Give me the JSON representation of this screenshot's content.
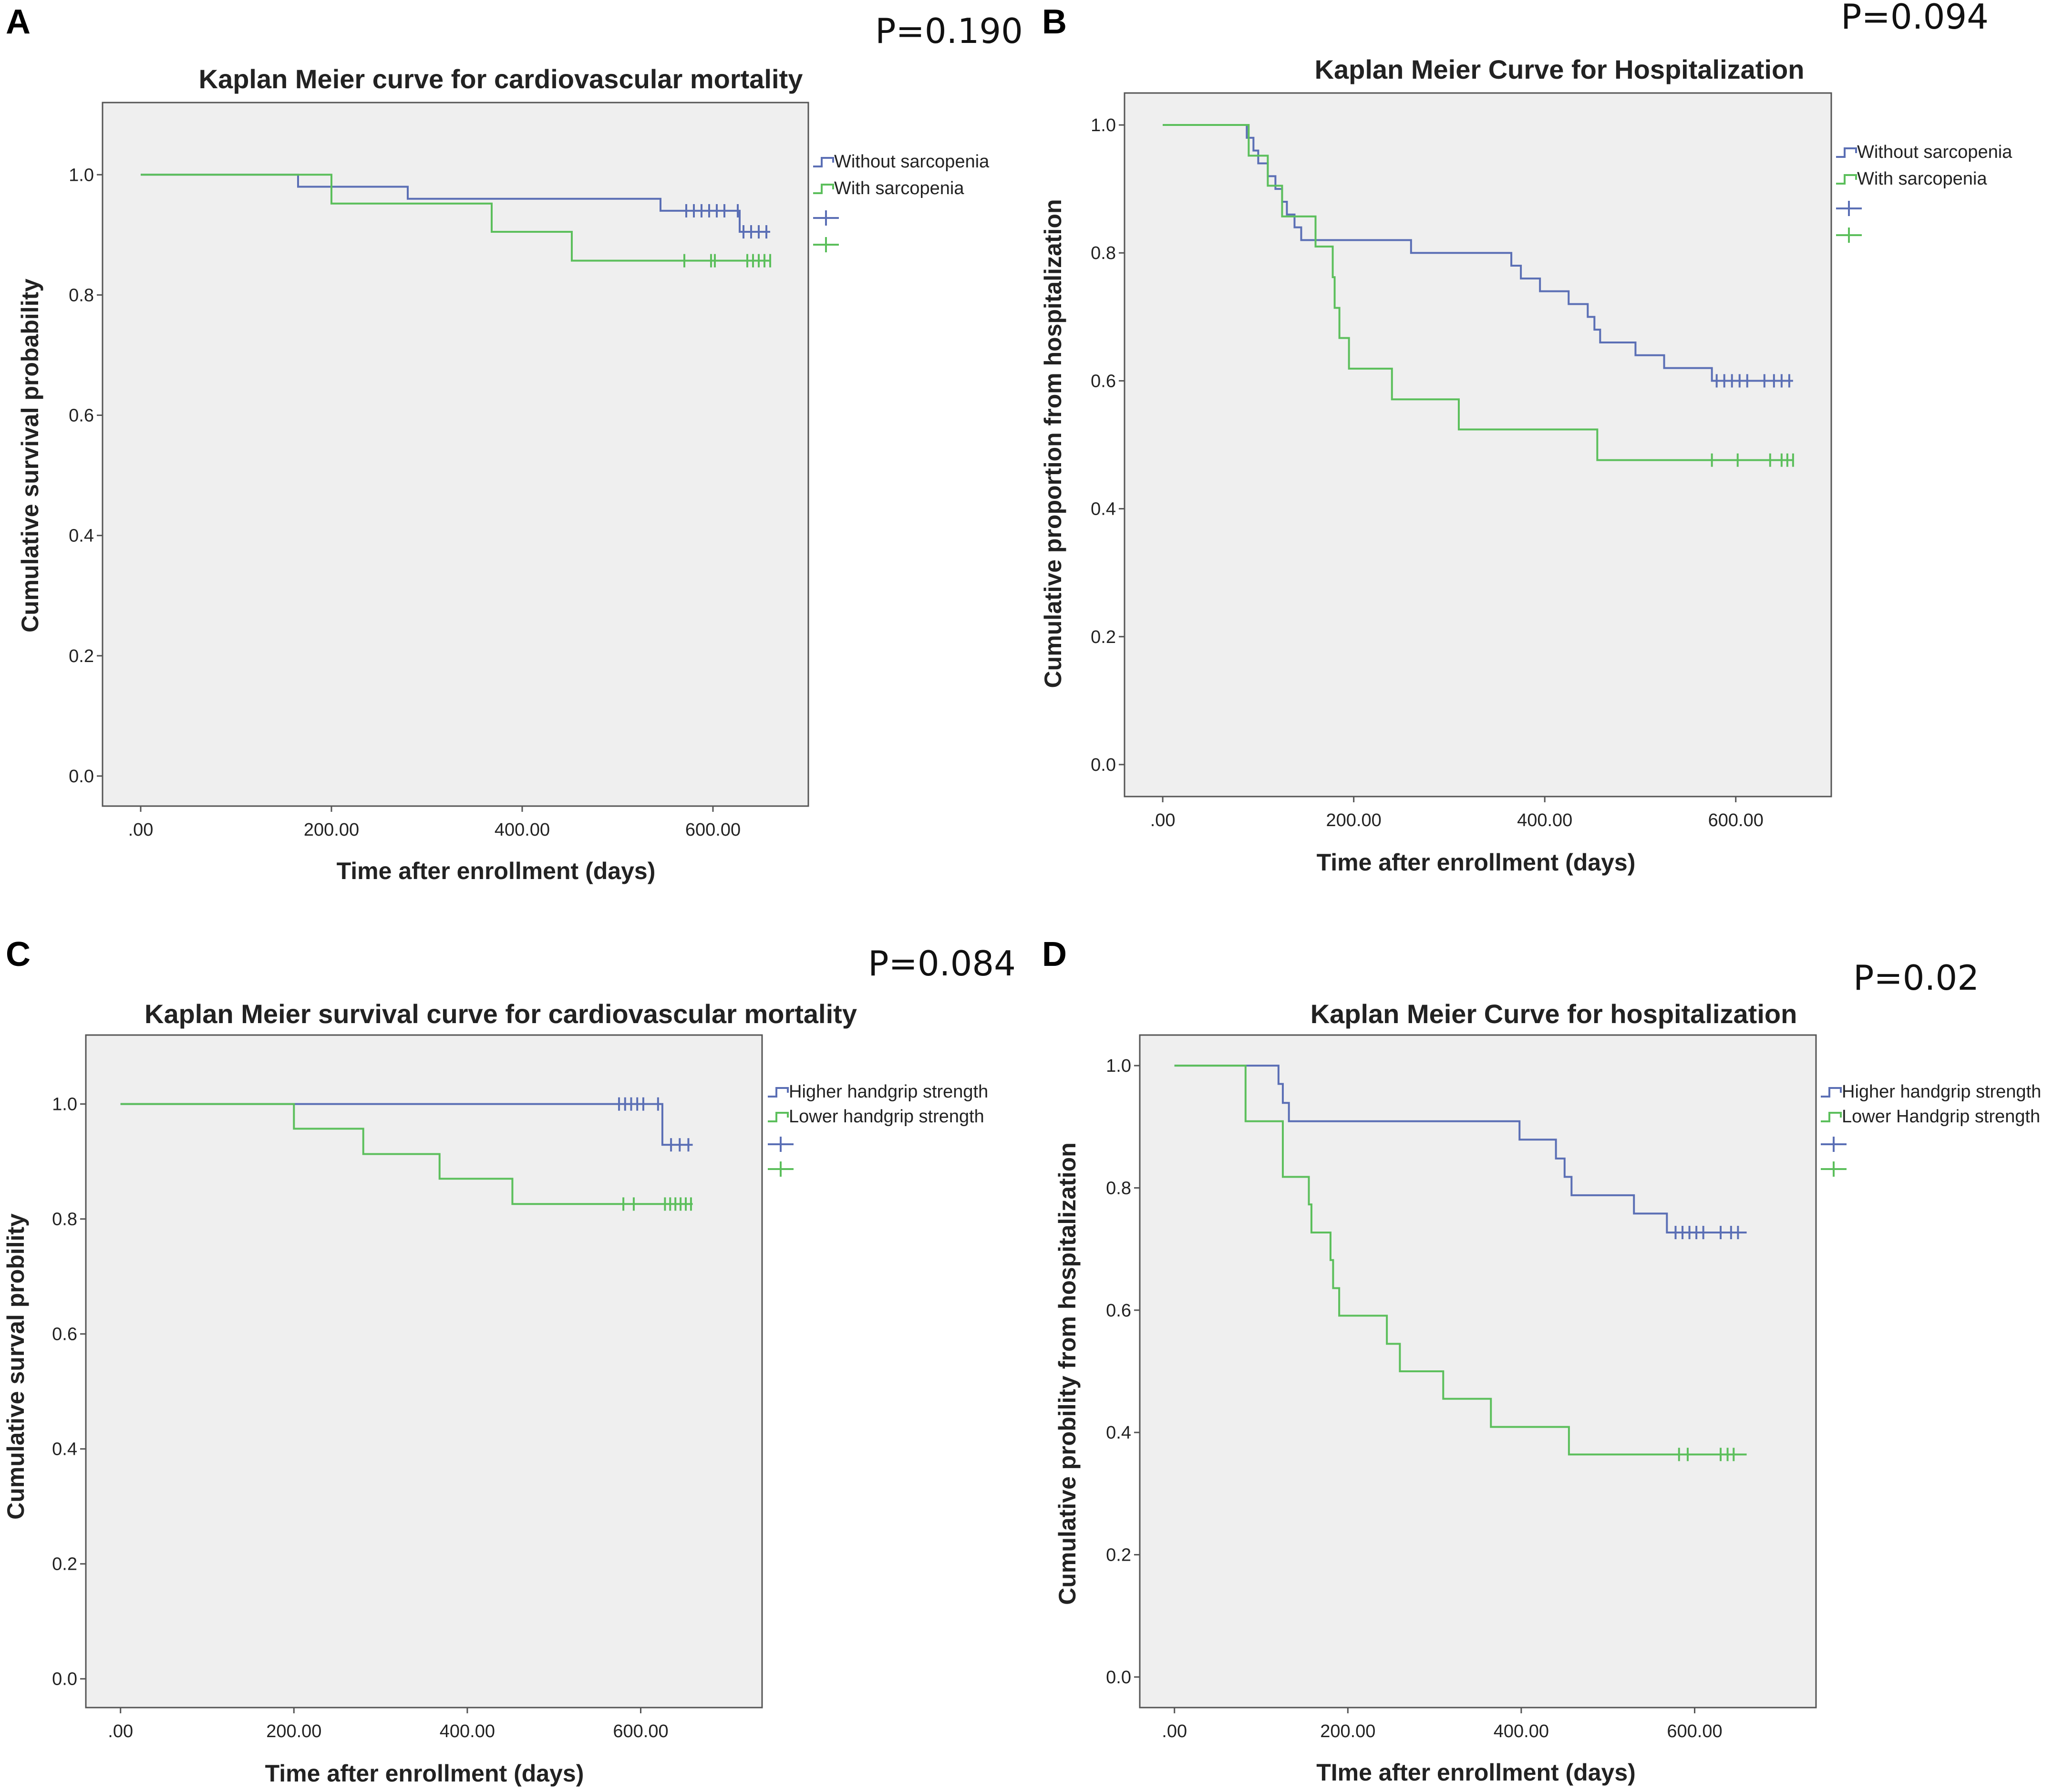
{
  "chart_data": [
    {
      "type": "line",
      "panel": "A",
      "p_value": "P=0.190",
      "title": "Kaplan Meier curve for cardiovascular mortality",
      "xlabel": "Time after enrollment (days)",
      "ylabel": "Cumulative survival probability",
      "xlim": [
        -40,
        700
      ],
      "ylim": [
        -0.05,
        1.12
      ],
      "xticks": [
        0,
        200,
        400,
        600
      ],
      "xtick_labels": [
        ".00",
        "200.00",
        "400.00",
        "600.00"
      ],
      "yticks": [
        0,
        0.2,
        0.4,
        0.6,
        0.8,
        1.0
      ],
      "ytick_labels": [
        "0.0",
        "0.2",
        "0.4",
        "0.6",
        "0.8",
        "1.0"
      ],
      "legend": [
        "Without sarcopenia",
        "With sarcopenia",
        "",
        ""
      ],
      "series": [
        {
          "name": "Without sarcopenia",
          "color": "#5b6fb5",
          "steps": [
            [
              0,
              1.0
            ],
            [
              165,
              0.98
            ],
            [
              280,
              0.96
            ],
            [
              545,
              0.94
            ],
            [
              628,
              0.905
            ],
            [
              660,
              0.905
            ]
          ],
          "censored": [
            [
              572,
              0.94
            ],
            [
              580,
              0.94
            ],
            [
              588,
              0.94
            ],
            [
              596,
              0.94
            ],
            [
              604,
              0.94
            ],
            [
              612,
              0.94
            ],
            [
              626,
              0.94
            ],
            [
              632,
              0.905
            ],
            [
              640,
              0.905
            ],
            [
              648,
              0.905
            ],
            [
              656,
              0.905
            ]
          ]
        },
        {
          "name": "With sarcopenia",
          "color": "#5cbf5c",
          "steps": [
            [
              0,
              1.0
            ],
            [
              200,
              0.952
            ],
            [
              368,
              0.905
            ],
            [
              452,
              0.857
            ],
            [
              660,
              0.857
            ]
          ],
          "censored": [
            [
              570,
              0.857
            ],
            [
              598,
              0.857
            ],
            [
              602,
              0.857
            ],
            [
              636,
              0.857
            ],
            [
              642,
              0.857
            ],
            [
              648,
              0.857
            ],
            [
              654,
              0.857
            ],
            [
              660,
              0.857
            ]
          ]
        }
      ]
    },
    {
      "type": "line",
      "panel": "B",
      "p_value": "P=0.094",
      "title": "Kaplan Meier Curve for Hospitalization",
      "xlabel": "Time after enrollment (days)",
      "ylabel": "Cumulative proportion from hospitalization",
      "xlim": [
        -40,
        700
      ],
      "ylim": [
        -0.05,
        1.05
      ],
      "xticks": [
        0,
        200,
        400,
        600
      ],
      "xtick_labels": [
        ".00",
        "200.00",
        "400.00",
        "600.00"
      ],
      "yticks": [
        0,
        0.2,
        0.4,
        0.6,
        0.8,
        1.0
      ],
      "ytick_labels": [
        "0.0",
        "0.2",
        "0.4",
        "0.6",
        "0.8",
        "1.0"
      ],
      "legend": [
        "Without sarcopenia",
        "With sarcopenia",
        "",
        ""
      ],
      "series": [
        {
          "name": "Without sarcopenia",
          "color": "#5b6fb5",
          "steps": [
            [
              0,
              1.0
            ],
            [
              88,
              0.98
            ],
            [
              95,
              0.96
            ],
            [
              100,
              0.94
            ],
            [
              110,
              0.92
            ],
            [
              118,
              0.9
            ],
            [
              125,
              0.88
            ],
            [
              130,
              0.86
            ],
            [
              138,
              0.84
            ],
            [
              145,
              0.82
            ],
            [
              260,
              0.8
            ],
            [
              365,
              0.78
            ],
            [
              375,
              0.76
            ],
            [
              395,
              0.74
            ],
            [
              425,
              0.72
            ],
            [
              445,
              0.7
            ],
            [
              452,
              0.68
            ],
            [
              458,
              0.66
            ],
            [
              495,
              0.64
            ],
            [
              525,
              0.62
            ],
            [
              575,
              0.6
            ],
            [
              660,
              0.6
            ]
          ],
          "censored": [
            [
              580,
              0.6
            ],
            [
              588,
              0.6
            ],
            [
              596,
              0.6
            ],
            [
              604,
              0.6
            ],
            [
              612,
              0.6
            ],
            [
              630,
              0.6
            ],
            [
              640,
              0.6
            ],
            [
              648,
              0.6
            ],
            [
              656,
              0.6
            ]
          ]
        },
        {
          "name": "With sarcopenia",
          "color": "#5cbf5c",
          "steps": [
            [
              0,
              1.0
            ],
            [
              90,
              0.952
            ],
            [
              110,
              0.905
            ],
            [
              125,
              0.857
            ],
            [
              160,
              0.81
            ],
            [
              178,
              0.762
            ],
            [
              180,
              0.714
            ],
            [
              185,
              0.667
            ],
            [
              195,
              0.619
            ],
            [
              240,
              0.571
            ],
            [
              310,
              0.524
            ],
            [
              455,
              0.476
            ],
            [
              660,
              0.476
            ]
          ],
          "censored": [
            [
              575,
              0.476
            ],
            [
              602,
              0.476
            ],
            [
              636,
              0.476
            ],
            [
              648,
              0.476
            ],
            [
              654,
              0.476
            ],
            [
              660,
              0.476
            ]
          ]
        }
      ]
    },
    {
      "type": "line",
      "panel": "C",
      "p_value": "P=0.084",
      "title": "Kaplan Meier survival curve for cardiovascular mortality",
      "xlabel": "Time after enrollment (days)",
      "ylabel": "Cumulative surval probility",
      "xlim": [
        -40,
        740
      ],
      "ylim": [
        -0.05,
        1.12
      ],
      "xticks": [
        0,
        200,
        400,
        600
      ],
      "xtick_labels": [
        ".00",
        "200.00",
        "400.00",
        "600.00"
      ],
      "yticks": [
        0,
        0.2,
        0.4,
        0.6,
        0.8,
        1.0
      ],
      "ytick_labels": [
        "0.0",
        "0.2",
        "0.4",
        "0.6",
        "0.8",
        "1.0"
      ],
      "legend": [
        "Higher handgrip strength",
        "Lower handgrip strength",
        "",
        ""
      ],
      "series": [
        {
          "name": "Higher handgrip strength",
          "color": "#5b6fb5",
          "steps": [
            [
              0,
              1.0
            ],
            [
              625,
              0.929
            ],
            [
              660,
              0.929
            ]
          ],
          "censored": [
            [
              575,
              1.0
            ],
            [
              582,
              1.0
            ],
            [
              589,
              1.0
            ],
            [
              596,
              1.0
            ],
            [
              603,
              1.0
            ],
            [
              620,
              1.0
            ],
            [
              635,
              0.929
            ],
            [
              645,
              0.929
            ],
            [
              655,
              0.929
            ]
          ]
        },
        {
          "name": "Lower handgrip strength",
          "color": "#5cbf5c",
          "steps": [
            [
              0,
              1.0
            ],
            [
              200,
              0.957
            ],
            [
              280,
              0.913
            ],
            [
              368,
              0.87
            ],
            [
              452,
              0.826
            ],
            [
              660,
              0.826
            ]
          ],
          "censored": [
            [
              580,
              0.826
            ],
            [
              592,
              0.826
            ],
            [
              628,
              0.826
            ],
            [
              634,
              0.826
            ],
            [
              640,
              0.826
            ],
            [
              646,
              0.826
            ],
            [
              652,
              0.826
            ],
            [
              658,
              0.826
            ]
          ]
        }
      ]
    },
    {
      "type": "line",
      "panel": "D",
      "p_value": "P=0.02",
      "title": "Kaplan Meier Curve for hospitalization",
      "xlabel": "TIme after enrollment (days)",
      "ylabel": "Cumulative probility from hospitalization",
      "xlim": [
        -40,
        740
      ],
      "ylim": [
        -0.05,
        1.05
      ],
      "xticks": [
        0,
        200,
        400,
        600
      ],
      "xtick_labels": [
        ".00",
        "200.00",
        "400.00",
        "600.00"
      ],
      "yticks": [
        0,
        0.2,
        0.4,
        0.6,
        0.8,
        1.0
      ],
      "ytick_labels": [
        "0.0",
        "0.2",
        "0.4",
        "0.6",
        "0.8",
        "1.0"
      ],
      "legend": [
        "Higher handgrip strength",
        "Lower Handgrip strength",
        "",
        ""
      ],
      "series": [
        {
          "name": "Higher handgrip strength",
          "color": "#5b6fb5",
          "steps": [
            [
              0,
              1.0
            ],
            [
              120,
              0.97
            ],
            [
              125,
              0.939
            ],
            [
              132,
              0.909
            ],
            [
              398,
              0.879
            ],
            [
              440,
              0.848
            ],
            [
              450,
              0.818
            ],
            [
              458,
              0.788
            ],
            [
              530,
              0.758
            ],
            [
              568,
              0.727
            ],
            [
              660,
              0.727
            ]
          ],
          "censored": [
            [
              578,
              0.727
            ],
            [
              586,
              0.727
            ],
            [
              594,
              0.727
            ],
            [
              602,
              0.727
            ],
            [
              610,
              0.727
            ],
            [
              630,
              0.727
            ],
            [
              642,
              0.727
            ],
            [
              650,
              0.727
            ]
          ]
        },
        {
          "name": "Lower Handgrip strength",
          "color": "#5cbf5c",
          "steps": [
            [
              0,
              1.0
            ],
            [
              82,
              0.909
            ],
            [
              125,
              0.818
            ],
            [
              155,
              0.773
            ],
            [
              158,
              0.727
            ],
            [
              180,
              0.682
            ],
            [
              183,
              0.636
            ],
            [
              190,
              0.591
            ],
            [
              245,
              0.545
            ],
            [
              260,
              0.5
            ],
            [
              310,
              0.455
            ],
            [
              365,
              0.409
            ],
            [
              455,
              0.364
            ],
            [
              660,
              0.364
            ]
          ],
          "censored": [
            [
              582,
              0.364
            ],
            [
              592,
              0.364
            ],
            [
              630,
              0.364
            ],
            [
              638,
              0.364
            ],
            [
              645,
              0.364
            ]
          ]
        }
      ]
    }
  ]
}
